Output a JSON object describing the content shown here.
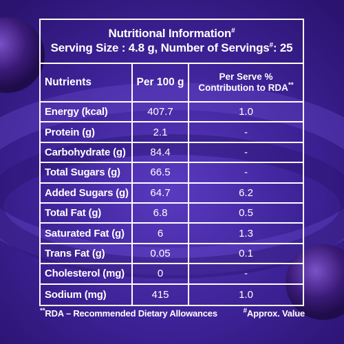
{
  "panel": {
    "title": "Nutritional Information",
    "title_mark": "#",
    "serving_line": "Serving Size : 4.8 g, Number of Servings",
    "serving_mark": "#",
    "serving_count": ": 25"
  },
  "columns": {
    "nutrients": "Nutrients",
    "per100": "Per 100 g",
    "rda_line1": "Per Serve %",
    "rda_line2": "Contribution to RDA",
    "rda_mark": "**"
  },
  "rows": [
    {
      "name": "Energy (kcal)",
      "per100": "407.7",
      "rda": "1.0"
    },
    {
      "name": "Protein (g)",
      "per100": "2.1",
      "rda": "-"
    },
    {
      "name": "Carbohydrate (g)",
      "per100": "84.4",
      "rda": "-"
    },
    {
      "name": "Total Sugars (g)",
      "per100": "66.5",
      "rda": "-"
    },
    {
      "name": "Added Sugars (g)",
      "per100": "64.7",
      "rda": "6.2"
    },
    {
      "name": "Total Fat (g)",
      "per100": "6.8",
      "rda": "0.5"
    },
    {
      "name": "Saturated Fat (g)",
      "per100": "6",
      "rda": "1.3"
    },
    {
      "name": "Trans Fat (g)",
      "per100": "0.05",
      "rda": "0.1"
    },
    {
      "name": "Cholesterol (mg)",
      "per100": "0",
      "rda": "-"
    },
    {
      "name": "Sodium (mg)",
      "per100": "415",
      "rda": "1.0"
    }
  ],
  "footer": {
    "rda_mark": "**",
    "rda_note": "RDA – Recommended Dietary Allowances",
    "approx_mark": "#",
    "approx_note": "Approx. Value"
  },
  "colors": {
    "background": "#3b2190",
    "text": "#ffffff"
  }
}
